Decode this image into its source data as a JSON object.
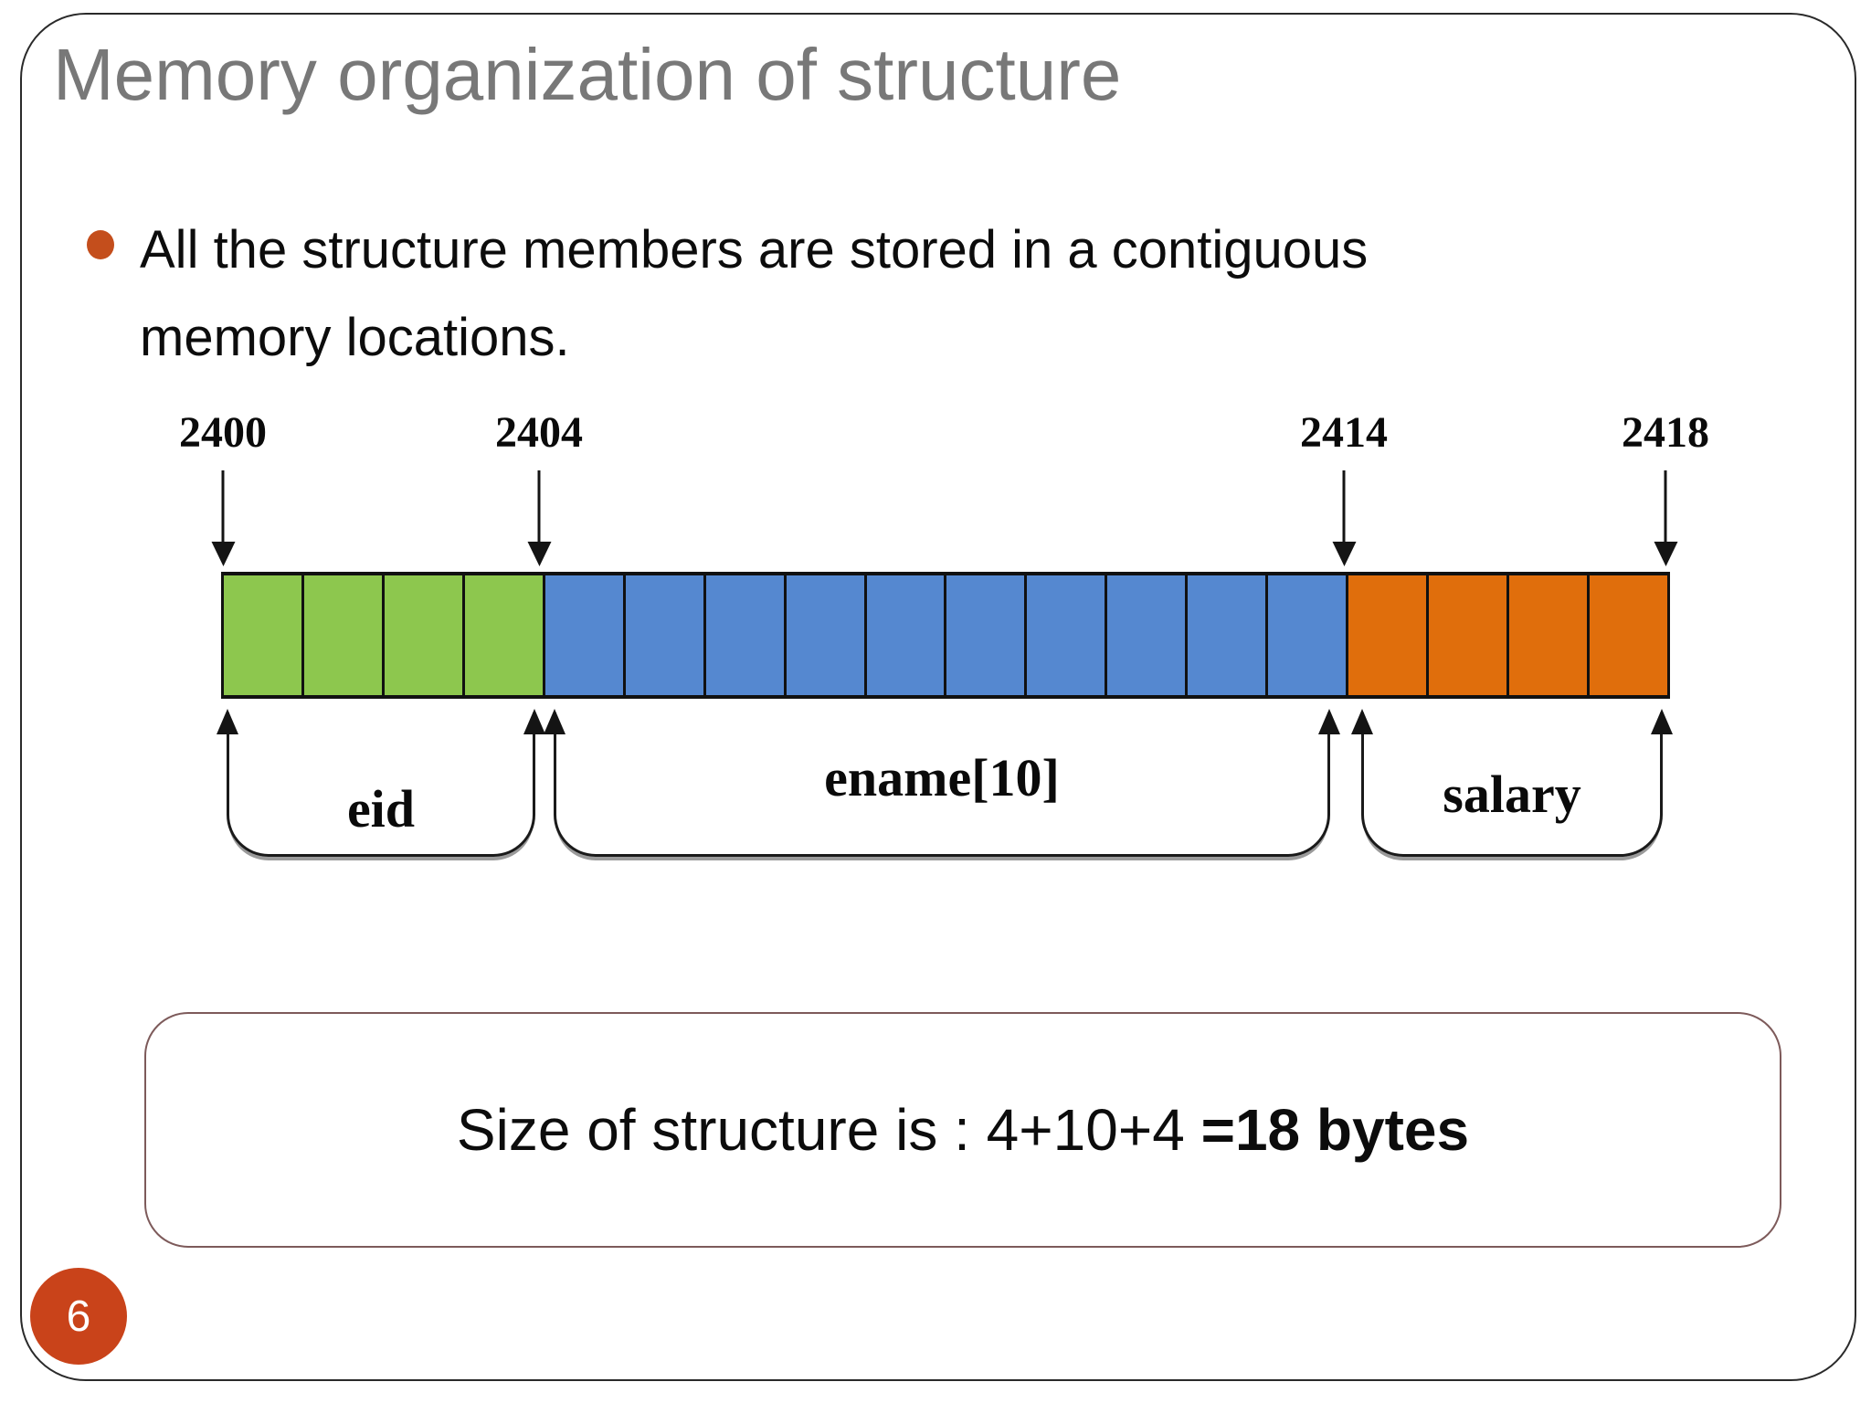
{
  "slide": {
    "title": "Memory organization of structure",
    "page_number": "6",
    "bullet": {
      "lines": [
        "All the structure members are stored in a contiguous",
        "memory locations."
      ]
    }
  },
  "diagram": {
    "addresses": [
      "2400",
      "2404",
      "2414",
      "2418"
    ],
    "sections": [
      {
        "member": "eid",
        "bytes": 4,
        "color": "#8dc74e"
      },
      {
        "member": "ename[10]",
        "bytes": 10,
        "color": "#5588d0"
      },
      {
        "member": "salary",
        "bytes": 4,
        "color": "#e06e0c"
      }
    ],
    "total_cells": 18
  },
  "size_box": {
    "text_regular": "Size of structure is : 4+10+4 ",
    "text_bold": "=18 bytes"
  },
  "colors": {
    "eid_green": "#8dc74e",
    "ename_blue": "#5588d0",
    "salary_orange": "#e06e0c",
    "badge_orange": "#c9431a",
    "bullet_orange": "#c44e1c",
    "title_gray": "#787878",
    "box_border": "#7d5a5a"
  }
}
